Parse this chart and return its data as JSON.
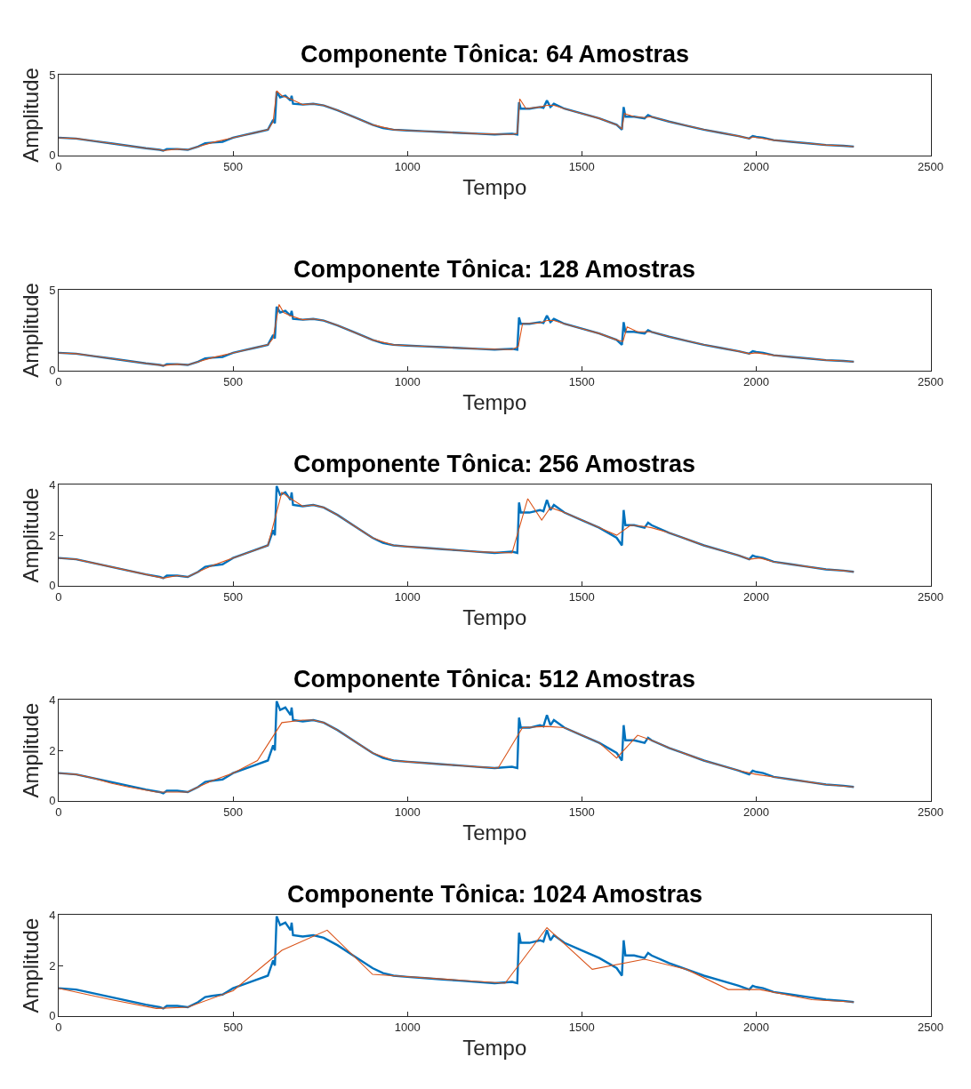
{
  "chart_data": [
    {
      "type": "line",
      "title": "Componente Tônica: 64 Amostras",
      "xlabel": "Tempo",
      "ylabel": "Amplitude",
      "xlim": [
        0,
        2500
      ],
      "xticks": [
        0,
        500,
        1000,
        1500,
        2000,
        2500
      ],
      "ylim": [
        0,
        5
      ],
      "yticks": [
        0,
        5
      ],
      "grid": false,
      "legend": false,
      "series": [
        {
          "color": "#0072bd",
          "x": [
            0,
            50,
            100,
            150,
            200,
            250,
            290,
            300,
            310,
            340,
            370,
            400,
            420,
            440,
            470,
            500,
            530,
            560,
            600,
            615,
            620,
            625,
            635,
            650,
            665,
            668,
            672,
            700,
            730,
            760,
            800,
            850,
            900,
            930,
            960,
            1000,
            1050,
            1100,
            1150,
            1200,
            1250,
            1300,
            1315,
            1320,
            1325,
            1350,
            1380,
            1390,
            1400,
            1410,
            1420,
            1450,
            1500,
            1550,
            1600,
            1615,
            1620,
            1625,
            1650,
            1680,
            1690,
            1700,
            1750,
            1800,
            1850,
            1900,
            1950,
            1980,
            1990,
            2000,
            2020,
            2050,
            2100,
            2150,
            2200,
            2250,
            2280
          ],
          "values": [
            1.1,
            1.05,
            0.9,
            0.75,
            0.6,
            0.45,
            0.35,
            0.3,
            0.4,
            0.4,
            0.35,
            0.55,
            0.75,
            0.8,
            0.85,
            1.1,
            1.25,
            1.4,
            1.6,
            2.2,
            2.0,
            3.95,
            3.6,
            3.7,
            3.4,
            3.7,
            3.2,
            3.15,
            3.2,
            3.1,
            2.8,
            2.35,
            1.9,
            1.7,
            1.6,
            1.55,
            1.5,
            1.45,
            1.4,
            1.35,
            1.3,
            1.35,
            1.3,
            3.3,
            2.9,
            2.9,
            3.0,
            2.95,
            3.4,
            3.0,
            3.2,
            2.9,
            2.6,
            2.3,
            1.9,
            1.6,
            3.0,
            2.4,
            2.4,
            2.3,
            2.5,
            2.4,
            2.1,
            1.85,
            1.6,
            1.4,
            1.2,
            1.05,
            1.2,
            1.15,
            1.1,
            0.95,
            0.85,
            0.75,
            0.65,
            0.6,
            0.55
          ]
        },
        {
          "color": "#d95319",
          "x": [
            0,
            50,
            100,
            150,
            200,
            250,
            290,
            300,
            340,
            370,
            400,
            440,
            500,
            560,
            600,
            615,
            625,
            640,
            665,
            700,
            730,
            760,
            800,
            850,
            900,
            960,
            1000,
            1100,
            1200,
            1300,
            1315,
            1322,
            1340,
            1380,
            1400,
            1420,
            1450,
            1500,
            1550,
            1600,
            1615,
            1622,
            1650,
            1680,
            1700,
            1750,
            1800,
            1850,
            1900,
            1950,
            1980,
            1990,
            2050,
            2100,
            2150,
            2200,
            2250,
            2280
          ],
          "values": [
            1.1,
            1.05,
            0.9,
            0.75,
            0.6,
            0.45,
            0.35,
            0.3,
            0.4,
            0.35,
            0.55,
            0.8,
            1.1,
            1.4,
            1.6,
            2.1,
            4.0,
            3.7,
            3.5,
            3.15,
            3.2,
            3.1,
            2.8,
            2.35,
            1.9,
            1.6,
            1.55,
            1.45,
            1.35,
            1.3,
            1.35,
            3.5,
            2.9,
            3.0,
            3.1,
            3.1,
            2.9,
            2.6,
            2.3,
            1.9,
            1.65,
            2.6,
            2.4,
            2.35,
            2.4,
            2.1,
            1.85,
            1.6,
            1.4,
            1.2,
            1.05,
            1.15,
            0.95,
            0.85,
            0.75,
            0.65,
            0.6,
            0.55
          ]
        }
      ]
    },
    {
      "type": "line",
      "title": "Componente Tônica: 128 Amostras",
      "xlabel": "Tempo",
      "ylabel": "Amplitude",
      "xlim": [
        0,
        2500
      ],
      "xticks": [
        0,
        500,
        1000,
        1500,
        2000,
        2500
      ],
      "ylim": [
        0,
        5
      ],
      "yticks": [
        0,
        5
      ],
      "grid": false,
      "legend": false,
      "series": [
        {
          "color": "#0072bd",
          "x": [
            0,
            50,
            100,
            150,
            200,
            250,
            290,
            300,
            310,
            340,
            370,
            400,
            420,
            440,
            470,
            500,
            530,
            560,
            600,
            615,
            620,
            625,
            635,
            650,
            665,
            668,
            672,
            700,
            730,
            760,
            800,
            850,
            900,
            930,
            960,
            1000,
            1050,
            1100,
            1150,
            1200,
            1250,
            1300,
            1315,
            1320,
            1325,
            1350,
            1380,
            1390,
            1400,
            1410,
            1420,
            1450,
            1500,
            1550,
            1600,
            1615,
            1620,
            1625,
            1650,
            1680,
            1690,
            1700,
            1750,
            1800,
            1850,
            1900,
            1950,
            1980,
            1990,
            2000,
            2020,
            2050,
            2100,
            2150,
            2200,
            2250,
            2280
          ],
          "values": [
            1.1,
            1.05,
            0.9,
            0.75,
            0.6,
            0.45,
            0.35,
            0.3,
            0.4,
            0.4,
            0.35,
            0.55,
            0.75,
            0.8,
            0.85,
            1.1,
            1.25,
            1.4,
            1.6,
            2.2,
            2.0,
            3.95,
            3.6,
            3.7,
            3.4,
            3.7,
            3.2,
            3.15,
            3.2,
            3.1,
            2.8,
            2.35,
            1.9,
            1.7,
            1.6,
            1.55,
            1.5,
            1.45,
            1.4,
            1.35,
            1.3,
            1.35,
            1.3,
            3.3,
            2.9,
            2.9,
            3.0,
            2.95,
            3.4,
            3.0,
            3.2,
            2.9,
            2.6,
            2.3,
            1.9,
            1.6,
            3.0,
            2.4,
            2.4,
            2.3,
            2.5,
            2.4,
            2.1,
            1.85,
            1.6,
            1.4,
            1.2,
            1.05,
            1.2,
            1.15,
            1.1,
            0.95,
            0.85,
            0.75,
            0.65,
            0.6,
            0.55
          ]
        },
        {
          "color": "#d95319",
          "x": [
            0,
            50,
            100,
            150,
            200,
            250,
            300,
            340,
            370,
            400,
            440,
            500,
            560,
            600,
            615,
            632,
            645,
            665,
            700,
            730,
            760,
            800,
            850,
            900,
            960,
            1000,
            1100,
            1200,
            1300,
            1318,
            1330,
            1380,
            1400,
            1420,
            1450,
            1500,
            1550,
            1600,
            1618,
            1630,
            1660,
            1700,
            1750,
            1800,
            1850,
            1900,
            1950,
            1980,
            2000,
            2050,
            2100,
            2150,
            2200,
            2250,
            2280
          ],
          "values": [
            1.1,
            1.05,
            0.9,
            0.75,
            0.6,
            0.45,
            0.32,
            0.4,
            0.35,
            0.55,
            0.8,
            1.1,
            1.4,
            1.6,
            2.0,
            4.1,
            3.6,
            3.4,
            3.15,
            3.2,
            3.1,
            2.8,
            2.35,
            1.9,
            1.6,
            1.55,
            1.45,
            1.35,
            1.3,
            1.5,
            2.9,
            2.95,
            3.1,
            3.1,
            2.9,
            2.6,
            2.3,
            1.9,
            1.8,
            2.7,
            2.4,
            2.4,
            2.1,
            1.85,
            1.6,
            1.4,
            1.2,
            1.05,
            1.1,
            0.95,
            0.85,
            0.75,
            0.65,
            0.6,
            0.55
          ]
        }
      ]
    },
    {
      "type": "line",
      "title": "Componente Tônica: 256 Amostras",
      "xlabel": "Tempo",
      "ylabel": "Amplitude",
      "xlim": [
        0,
        2500
      ],
      "xticks": [
        0,
        500,
        1000,
        1500,
        2000,
        2500
      ],
      "ylim": [
        0,
        4
      ],
      "yticks": [
        0,
        2,
        4
      ],
      "grid": false,
      "legend": false,
      "series": [
        {
          "color": "#0072bd",
          "x": [
            0,
            50,
            100,
            150,
            200,
            250,
            290,
            300,
            310,
            340,
            370,
            400,
            420,
            440,
            470,
            500,
            530,
            560,
            600,
            615,
            620,
            625,
            635,
            650,
            665,
            668,
            672,
            700,
            730,
            760,
            800,
            850,
            900,
            930,
            960,
            1000,
            1050,
            1100,
            1150,
            1200,
            1250,
            1300,
            1315,
            1320,
            1325,
            1350,
            1380,
            1390,
            1400,
            1410,
            1420,
            1450,
            1500,
            1550,
            1600,
            1615,
            1620,
            1625,
            1650,
            1680,
            1690,
            1700,
            1750,
            1800,
            1850,
            1900,
            1950,
            1980,
            1990,
            2000,
            2020,
            2050,
            2100,
            2150,
            2200,
            2250,
            2280
          ],
          "values": [
            1.1,
            1.05,
            0.9,
            0.75,
            0.6,
            0.45,
            0.35,
            0.3,
            0.4,
            0.4,
            0.35,
            0.55,
            0.75,
            0.8,
            0.85,
            1.1,
            1.25,
            1.4,
            1.6,
            2.2,
            2.0,
            3.95,
            3.6,
            3.7,
            3.4,
            3.7,
            3.2,
            3.15,
            3.2,
            3.1,
            2.8,
            2.35,
            1.9,
            1.7,
            1.6,
            1.55,
            1.5,
            1.45,
            1.4,
            1.35,
            1.3,
            1.35,
            1.3,
            3.3,
            2.9,
            2.9,
            3.0,
            2.95,
            3.4,
            3.0,
            3.2,
            2.9,
            2.6,
            2.3,
            1.9,
            1.6,
            3.0,
            2.4,
            2.4,
            2.3,
            2.5,
            2.4,
            2.1,
            1.85,
            1.6,
            1.4,
            1.2,
            1.05,
            1.2,
            1.15,
            1.1,
            0.95,
            0.85,
            0.75,
            0.65,
            0.6,
            0.55
          ]
        },
        {
          "color": "#d95319",
          "x": [
            0,
            50,
            100,
            150,
            200,
            250,
            300,
            340,
            370,
            400,
            440,
            500,
            560,
            600,
            640,
            660,
            700,
            730,
            760,
            800,
            850,
            900,
            960,
            1000,
            1100,
            1200,
            1300,
            1345,
            1385,
            1410,
            1450,
            1500,
            1550,
            1600,
            1640,
            1680,
            1700,
            1750,
            1800,
            1850,
            1900,
            1950,
            1980,
            2010,
            2050,
            2100,
            2150,
            2200,
            2250,
            2280
          ],
          "values": [
            1.1,
            1.05,
            0.9,
            0.75,
            0.6,
            0.45,
            0.3,
            0.4,
            0.35,
            0.55,
            0.8,
            1.1,
            1.4,
            1.6,
            3.7,
            3.5,
            3.15,
            3.2,
            3.1,
            2.8,
            2.35,
            1.9,
            1.6,
            1.55,
            1.45,
            1.35,
            1.3,
            3.45,
            2.6,
            3.1,
            2.9,
            2.6,
            2.3,
            2.0,
            2.4,
            2.35,
            2.3,
            2.1,
            1.85,
            1.6,
            1.4,
            1.2,
            1.05,
            1.1,
            0.95,
            0.85,
            0.75,
            0.65,
            0.6,
            0.55
          ]
        }
      ]
    },
    {
      "type": "line",
      "title": "Componente Tônica: 512 Amostras",
      "xlabel": "Tempo",
      "ylabel": "Amplitude",
      "xlim": [
        0,
        2500
      ],
      "xticks": [
        0,
        500,
        1000,
        1500,
        2000,
        2500
      ],
      "ylim": [
        0,
        4
      ],
      "yticks": [
        0,
        2,
        4
      ],
      "grid": false,
      "legend": false,
      "series": [
        {
          "color": "#0072bd",
          "x": [
            0,
            50,
            100,
            150,
            200,
            250,
            290,
            300,
            310,
            340,
            370,
            400,
            420,
            440,
            470,
            500,
            530,
            560,
            600,
            615,
            620,
            625,
            635,
            650,
            665,
            668,
            672,
            700,
            730,
            760,
            800,
            850,
            900,
            930,
            960,
            1000,
            1050,
            1100,
            1150,
            1200,
            1250,
            1300,
            1315,
            1320,
            1325,
            1350,
            1380,
            1390,
            1400,
            1410,
            1420,
            1450,
            1500,
            1550,
            1600,
            1615,
            1620,
            1625,
            1650,
            1680,
            1690,
            1700,
            1750,
            1800,
            1850,
            1900,
            1950,
            1980,
            1990,
            2000,
            2020,
            2050,
            2100,
            2150,
            2200,
            2250,
            2280
          ],
          "values": [
            1.1,
            1.05,
            0.9,
            0.75,
            0.6,
            0.45,
            0.35,
            0.3,
            0.4,
            0.4,
            0.35,
            0.55,
            0.75,
            0.8,
            0.85,
            1.1,
            1.25,
            1.4,
            1.6,
            2.2,
            2.0,
            3.95,
            3.6,
            3.7,
            3.4,
            3.7,
            3.2,
            3.15,
            3.2,
            3.1,
            2.8,
            2.35,
            1.9,
            1.7,
            1.6,
            1.55,
            1.5,
            1.45,
            1.4,
            1.35,
            1.3,
            1.35,
            1.3,
            3.3,
            2.9,
            2.9,
            3.0,
            2.95,
            3.4,
            3.0,
            3.2,
            2.9,
            2.6,
            2.3,
            1.9,
            1.6,
            3.0,
            2.4,
            2.4,
            2.3,
            2.5,
            2.4,
            2.1,
            1.85,
            1.6,
            1.4,
            1.2,
            1.05,
            1.2,
            1.15,
            1.1,
            0.95,
            0.85,
            0.75,
            0.65,
            0.6,
            0.55
          ]
        },
        {
          "color": "#d95319",
          "x": [
            0,
            50,
            100,
            150,
            200,
            280,
            370,
            400,
            440,
            500,
            570,
            640,
            700,
            730,
            760,
            800,
            850,
            900,
            960,
            1000,
            1100,
            1200,
            1260,
            1330,
            1400,
            1450,
            1500,
            1550,
            1600,
            1660,
            1700,
            1750,
            1800,
            1850,
            1900,
            1950,
            2000,
            2050,
            2100,
            2150,
            2200,
            2280
          ],
          "values": [
            1.1,
            1.05,
            0.9,
            0.7,
            0.55,
            0.35,
            0.35,
            0.55,
            0.8,
            1.1,
            1.6,
            3.1,
            3.2,
            3.2,
            3.1,
            2.8,
            2.35,
            1.9,
            1.6,
            1.55,
            1.45,
            1.35,
            1.3,
            2.9,
            2.95,
            2.9,
            2.6,
            2.3,
            1.7,
            2.6,
            2.4,
            2.1,
            1.85,
            1.6,
            1.4,
            1.2,
            1.05,
            0.95,
            0.85,
            0.75,
            0.65,
            0.55
          ]
        }
      ]
    },
    {
      "type": "line",
      "title": "Componente Tônica: 1024 Amostras",
      "xlabel": "Tempo",
      "ylabel": "Amplitude",
      "xlim": [
        0,
        2500
      ],
      "xticks": [
        0,
        500,
        1000,
        1500,
        2000,
        2500
      ],
      "ylim": [
        0,
        4
      ],
      "yticks": [
        0,
        2,
        4
      ],
      "grid": false,
      "legend": false,
      "series": [
        {
          "color": "#0072bd",
          "x": [
            0,
            50,
            100,
            150,
            200,
            250,
            290,
            300,
            310,
            340,
            370,
            400,
            420,
            440,
            470,
            500,
            530,
            560,
            600,
            615,
            620,
            625,
            635,
            650,
            665,
            668,
            672,
            700,
            730,
            760,
            800,
            850,
            900,
            930,
            960,
            1000,
            1050,
            1100,
            1150,
            1200,
            1250,
            1300,
            1315,
            1320,
            1325,
            1350,
            1380,
            1390,
            1400,
            1410,
            1420,
            1450,
            1500,
            1550,
            1600,
            1615,
            1620,
            1625,
            1650,
            1680,
            1690,
            1700,
            1750,
            1800,
            1850,
            1900,
            1950,
            1980,
            1990,
            2000,
            2020,
            2050,
            2100,
            2150,
            2200,
            2250,
            2280
          ],
          "values": [
            1.1,
            1.05,
            0.9,
            0.75,
            0.6,
            0.45,
            0.35,
            0.3,
            0.4,
            0.4,
            0.35,
            0.55,
            0.75,
            0.8,
            0.85,
            1.1,
            1.25,
            1.4,
            1.6,
            2.2,
            2.0,
            3.95,
            3.6,
            3.7,
            3.4,
            3.7,
            3.2,
            3.15,
            3.2,
            3.1,
            2.8,
            2.35,
            1.9,
            1.7,
            1.6,
            1.55,
            1.5,
            1.45,
            1.4,
            1.35,
            1.3,
            1.35,
            1.3,
            3.3,
            2.9,
            2.9,
            3.0,
            2.95,
            3.4,
            3.0,
            3.2,
            2.9,
            2.6,
            2.3,
            1.9,
            1.6,
            3.0,
            2.4,
            2.4,
            2.3,
            2.5,
            2.4,
            2.1,
            1.85,
            1.6,
            1.4,
            1.2,
            1.05,
            1.2,
            1.15,
            1.1,
            0.95,
            0.85,
            0.75,
            0.65,
            0.6,
            0.55
          ]
        },
        {
          "color": "#d95319",
          "x": [
            0,
            150,
            280,
            370,
            500,
            640,
            770,
            900,
            1280,
            1400,
            1530,
            1680,
            1800,
            1920,
            2010,
            2160,
            2280
          ],
          "values": [
            1.1,
            0.65,
            0.3,
            0.35,
            1.0,
            2.6,
            3.4,
            1.65,
            1.3,
            3.5,
            1.85,
            2.25,
            1.85,
            1.05,
            1.05,
            0.65,
            0.55
          ]
        }
      ]
    }
  ]
}
